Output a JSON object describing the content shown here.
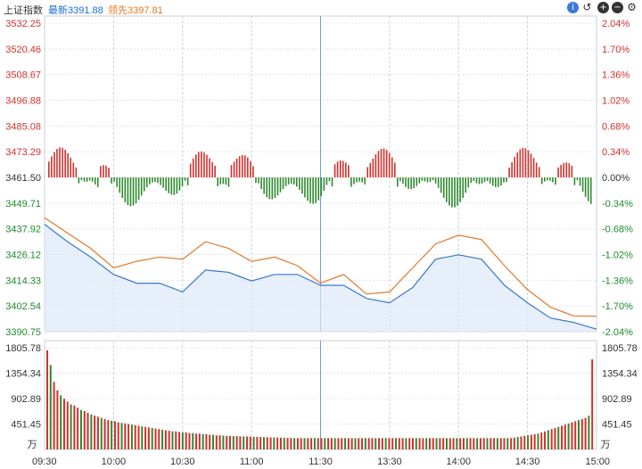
{
  "header": {
    "title": "上证指数",
    "latest": "最新3391.88",
    "lead": "领先3397.81",
    "icons": [
      "info-icon",
      "undo-icon",
      "zoom-in-icon",
      "zoom-out-icon",
      "settings-icon"
    ]
  },
  "chart_data": {
    "type": "line",
    "price_axis": {
      "left_ticks": [
        "3532.25",
        "3520.46",
        "3508.67",
        "3496.88",
        "3485.08",
        "3473.29",
        "3461.50",
        "3449.71",
        "3437.92",
        "3426.12",
        "3414.33",
        "3402.54",
        "3390.75"
      ],
      "right_ticks": [
        "2.04%",
        "1.70%",
        "1.36%",
        "1.02%",
        "0.68%",
        "0.34%",
        "0.00%",
        "-0.34%",
        "-0.68%",
        "-1.02%",
        "-1.36%",
        "-1.70%",
        "-2.04%"
      ],
      "ylim": [
        3390.75,
        3532.25
      ],
      "prev_close": 3461.5
    },
    "time_labels": [
      "09:30",
      "10:00",
      "10:30",
      "11:00",
      "11:30",
      "13:30",
      "14:00",
      "14:30",
      "15:00"
    ],
    "series": [
      {
        "color": "#3a78c9",
        "x": [
          "09:30",
          "09:40",
          "09:50",
          "10:00",
          "10:10",
          "10:20",
          "10:30",
          "10:40",
          "10:50",
          "11:00",
          "11:10",
          "11:20",
          "11:30",
          "13:10",
          "13:20",
          "13:30",
          "13:40",
          "13:50",
          "14:00",
          "14:10",
          "14:20",
          "14:30",
          "14:40",
          "14:50",
          "15:00"
        ],
        "values": [
          3440,
          3432,
          3425,
          3417,
          3413,
          3413,
          3409,
          3419,
          3418,
          3414,
          3417,
          3417,
          3412,
          3412,
          3406,
          3404,
          3411,
          3424,
          3426,
          3424,
          3412,
          3404,
          3397,
          3395,
          3391.88
        ]
      },
      {
        "color": "#e0782c",
        "x": [
          "09:30",
          "09:40",
          "09:50",
          "10:00",
          "10:10",
          "10:20",
          "10:30",
          "10:40",
          "10:50",
          "11:00",
          "11:10",
          "11:20",
          "11:30",
          "13:10",
          "13:20",
          "13:30",
          "13:40",
          "13:50",
          "14:00",
          "14:10",
          "14:20",
          "14:30",
          "14:40",
          "14:50",
          "15:00"
        ],
        "values": [
          3443,
          3436,
          3429,
          3420,
          3423,
          3425,
          3424,
          3432,
          3429,
          3423,
          3425,
          3421,
          3413,
          3417,
          3408,
          3409,
          3420,
          3431,
          3435,
          3433,
          3421,
          3410,
          3402,
          3398,
          3397.81
        ]
      }
    ],
    "volume_axis": {
      "ticks": [
        "1805.78",
        "1354.34",
        "902.89",
        "451.45"
      ],
      "unit": "万",
      "ylim": [
        0,
        1805.78
      ],
      "values": [
        1760,
        1500,
        1200,
        1050,
        960,
        900,
        850,
        800,
        780,
        740,
        700,
        680,
        650,
        620,
        600,
        580,
        560,
        540,
        520,
        510,
        500,
        480,
        470,
        460,
        450,
        440,
        430,
        420,
        410,
        400,
        390,
        380,
        370,
        360,
        350,
        340,
        330,
        320,
        320,
        310,
        300,
        300,
        290,
        290,
        280,
        280,
        270,
        270,
        260,
        260,
        250,
        250,
        245,
        240,
        238,
        236,
        234,
        232,
        230,
        228,
        226,
        224,
        222,
        220,
        218,
        216,
        214,
        212,
        210,
        208,
        206,
        204,
        202,
        200,
        200,
        200,
        200,
        200,
        200,
        200,
        200,
        200,
        200,
        200,
        200,
        200,
        200,
        200,
        200,
        200,
        200,
        200,
        200,
        200,
        200,
        200,
        200,
        200,
        200,
        200,
        200,
        200,
        200,
        200,
        200,
        200,
        200,
        200,
        200,
        200,
        200,
        200,
        200,
        200,
        200,
        200,
        200,
        200,
        200,
        200,
        200,
        200,
        200,
        200,
        200,
        200,
        200,
        200,
        200,
        200,
        200,
        200,
        200,
        200,
        200,
        200,
        200,
        200,
        210,
        220,
        230,
        240,
        250,
        260,
        270,
        280,
        300,
        320,
        340,
        360,
        380,
        400,
        420,
        440,
        460,
        480,
        500,
        520,
        540,
        560,
        600,
        1600
      ]
    }
  }
}
